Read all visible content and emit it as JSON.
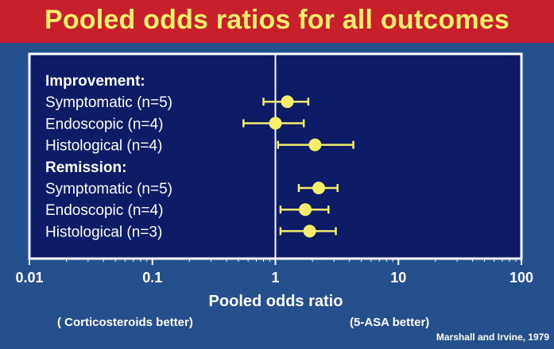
{
  "title": "Pooled odds ratios for all outcomes",
  "chart_data": {
    "type": "forest",
    "title": "Pooled odds ratios for all outcomes",
    "xlabel": "Pooled odds ratio",
    "xscale": "log",
    "xlim": [
      0.01,
      100
    ],
    "xticks": [
      0.01,
      0.1,
      1,
      10,
      100
    ],
    "xtick_labels": [
      "0.01",
      "0.1",
      "1",
      "10",
      "100"
    ],
    "reference_line": 1,
    "groups": [
      {
        "name": "Improvement:",
        "rows": [
          {
            "label": "Symptomatic (n=5)",
            "or": 1.25,
            "low": 0.8,
            "high": 1.85
          },
          {
            "label": "Endoscopic (n=4)",
            "or": 1.0,
            "low": 0.55,
            "high": 1.7
          },
          {
            "label": "Histological (n=4)",
            "or": 2.1,
            "low": 1.05,
            "high": 4.3
          }
        ]
      },
      {
        "name": "Remission:",
        "rows": [
          {
            "label": "Symptomatic (n=5)",
            "or": 2.25,
            "low": 1.55,
            "high": 3.2
          },
          {
            "label": "Endoscopic (n=4)",
            "or": 1.75,
            "low": 1.1,
            "high": 2.7
          },
          {
            "label": "Histological (n=3)",
            "or": 1.9,
            "low": 1.1,
            "high": 3.1
          }
        ]
      }
    ],
    "left_note": "( Corticosteroids better)",
    "right_note": "(5-ASA better)",
    "source": "Marshall and Irvine, 1979",
    "colors": {
      "title_bar": "#c8202a",
      "title_text": "#f3ee6e",
      "background": "#24508e",
      "plot_area": "#0e1b66",
      "marker": "#f4ee6a",
      "text": "#ffffff"
    }
  }
}
